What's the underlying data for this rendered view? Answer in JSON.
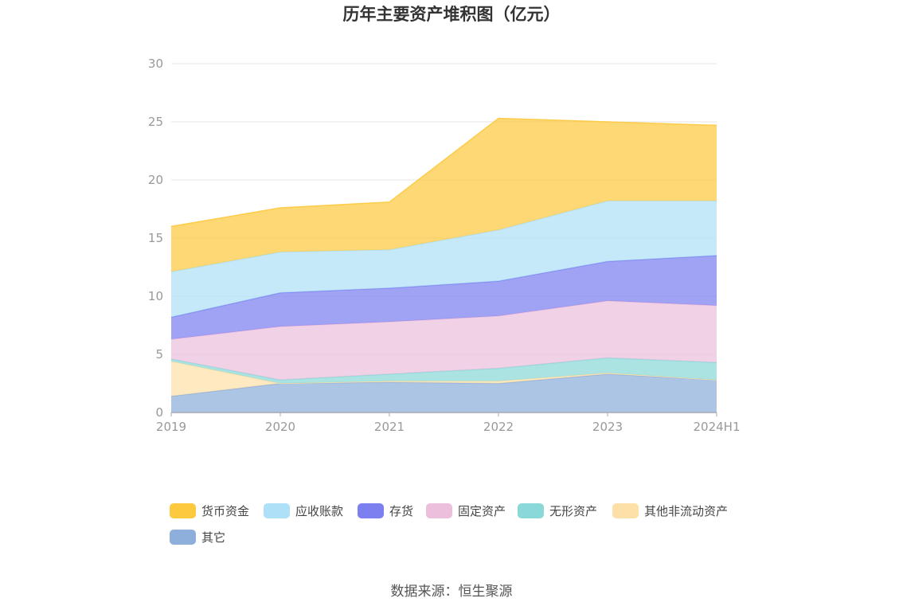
{
  "title": "历年主要资产堆积图（亿元）",
  "source_text": "数据来源：恒生聚源",
  "chart_data": {
    "type": "area",
    "stacked": true,
    "title": "历年主要资产堆积图（亿元）",
    "x": [
      "2019",
      "2020",
      "2021",
      "2022",
      "2023",
      "2024H1"
    ],
    "ylim": [
      0,
      30
    ],
    "y_ticks": [
      "0",
      "5",
      "10",
      "15",
      "20",
      "25",
      "30"
    ],
    "grid": true,
    "legend_position": "bottom",
    "series": [
      {
        "name": "其它",
        "color": "#8eaedb",
        "values": [
          1.4,
          2.5,
          2.6,
          2.5,
          3.3,
          2.8
        ]
      },
      {
        "name": "其他非流动资产",
        "color": "#fde0a8",
        "values": [
          3.0,
          0.0,
          0.1,
          0.2,
          0.1,
          0.0
        ]
      },
      {
        "name": "无形资产",
        "color": "#8ad8d8",
        "values": [
          0.2,
          0.3,
          0.6,
          1.1,
          1.3,
          1.5
        ]
      },
      {
        "name": "固定资产",
        "color": "#ecbfdd",
        "values": [
          1.7,
          4.6,
          4.5,
          4.5,
          4.9,
          4.9
        ]
      },
      {
        "name": "存货",
        "color": "#7b7ff0",
        "values": [
          1.9,
          2.9,
          2.9,
          3.0,
          3.4,
          4.3
        ]
      },
      {
        "name": "应收账款",
        "color": "#aee1f7",
        "values": [
          3.9,
          3.5,
          3.3,
          4.4,
          5.2,
          4.7
        ]
      },
      {
        "name": "货币资金",
        "color": "#fdc93f",
        "values": [
          3.9,
          3.8,
          4.1,
          9.6,
          6.8,
          6.5
        ]
      }
    ]
  },
  "legend": [
    {
      "label": "货币资金",
      "color": "#fdc93f"
    },
    {
      "label": "应收账款",
      "color": "#aee1f7"
    },
    {
      "label": "存货",
      "color": "#7b7ff0"
    },
    {
      "label": "固定资产",
      "color": "#ecbfdd"
    },
    {
      "label": "无形资产",
      "color": "#8ad8d8"
    },
    {
      "label": "其他非流动资产",
      "color": "#fde0a8"
    },
    {
      "label": "其它",
      "color": "#8eaedb"
    }
  ]
}
